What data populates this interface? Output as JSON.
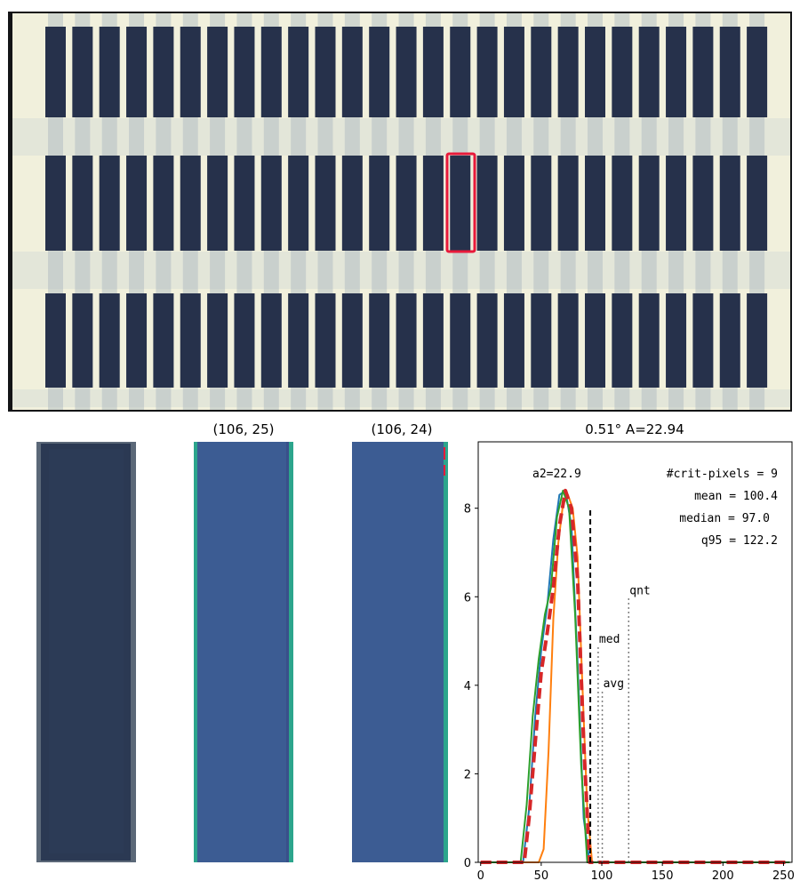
{
  "panel_titles": {
    "crop_2": "(106, 25)",
    "crop_3": "(106, 24)"
  },
  "colors": {
    "bar_dark": "#26314b",
    "frame_cream": "#f1f0dc",
    "highlight_box": "#e8193a",
    "crop_blue": "#3c5c93",
    "crop_teal_edge": "#2ca58c",
    "series_blue": "#1f77b4",
    "series_orange": "#ff7f0e",
    "series_green": "#2ca02c",
    "series_red": "#d62728"
  },
  "chart_data": {
    "type": "line",
    "title": "0.51° A=22.94",
    "xlabel": "",
    "ylabel": "",
    "xlim": [
      -2,
      257
    ],
    "ylim": [
      0,
      9.5
    ],
    "xticks": [
      "0",
      "50",
      "100",
      "150",
      "200",
      "250"
    ],
    "yticks": [
      "0",
      "2",
      "4",
      "6",
      "8"
    ],
    "series": [
      {
        "color": "#1f77b4",
        "style": "solid",
        "x": [
          0,
          35,
          40,
          45,
          50,
          55,
          60,
          65,
          70,
          75,
          80,
          85,
          90,
          255
        ],
        "y": [
          0,
          0,
          1.2,
          3.3,
          4.8,
          5.8,
          7.3,
          8.3,
          8.4,
          7.6,
          4.5,
          1.0,
          0,
          0
        ]
      },
      {
        "color": "#ff7f0e",
        "style": "solid",
        "x": [
          0,
          48,
          52,
          56,
          60,
          64,
          68,
          72,
          76,
          80,
          84,
          88,
          92,
          255
        ],
        "y": [
          0,
          0,
          0.3,
          2.5,
          5.5,
          7.2,
          8.1,
          8.3,
          8.0,
          6.9,
          4.0,
          1.2,
          0,
          0
        ]
      },
      {
        "color": "#2ca02c",
        "style": "solid",
        "x": [
          0,
          33,
          38,
          43,
          48,
          53,
          58,
          63,
          68,
          73,
          78,
          83,
          88,
          255
        ],
        "y": [
          0,
          0,
          1.3,
          3.3,
          4.6,
          5.6,
          6.2,
          7.8,
          8.4,
          8.0,
          5.6,
          2.2,
          0,
          0
        ]
      },
      {
        "color": "#d62728",
        "style": "dashed",
        "x": [
          0,
          36,
          40,
          45,
          50,
          55,
          60,
          65,
          70,
          75,
          80,
          85,
          90,
          255
        ],
        "y": [
          0,
          0,
          1.0,
          2.7,
          4.3,
          5.2,
          6.2,
          7.6,
          8.4,
          8.0,
          6.4,
          2.7,
          0,
          0
        ]
      }
    ],
    "vlines": [
      {
        "x": 90.5,
        "ymax": 8.0,
        "style": "dashed",
        "color": "#000000"
      },
      {
        "x": 97.0,
        "ymax": 4.9,
        "style": "dotted",
        "color": "#808080",
        "label": "med"
      },
      {
        "x": 100.4,
        "ymax": 3.9,
        "style": "dotted",
        "color": "#808080",
        "label": "avg"
      },
      {
        "x": 122.2,
        "ymax": 6.0,
        "style": "dotted",
        "color": "#808080",
        "label": "qnt"
      }
    ],
    "annotations": {
      "a2": "a2=22.9",
      "crit_pixels": "#crit-pixels = 9",
      "mean": "mean = 100.4",
      "median": "median = 97.0",
      "q95": "q95 = 122.2"
    }
  }
}
